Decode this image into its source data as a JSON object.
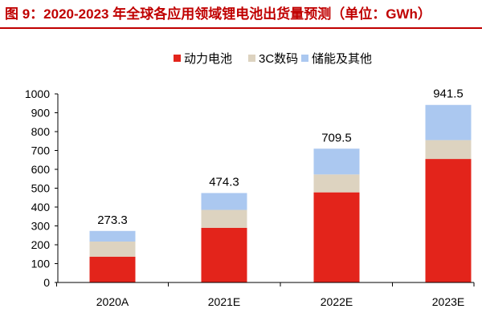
{
  "title": "图 9：2020-2023 年全球各应用领域锂电池出货量预测（单位：GWh）",
  "colors": {
    "title": "#c00000",
    "power": "#e3241b",
    "consumer": "#ddd3c0",
    "storage": "#abc8f0"
  },
  "chart_data": {
    "type": "bar",
    "stacked": true,
    "categories": [
      "2020A",
      "2021E",
      "2022E",
      "2023E"
    ],
    "series": [
      {
        "name": "动力电池",
        "values": [
          137,
          290,
          478,
          655
        ]
      },
      {
        "name": "3C数码",
        "values": [
          80,
          95,
          95,
          100
        ]
      },
      {
        "name": "储能及其他",
        "values": [
          56.3,
          89.3,
          136.5,
          186.5
        ]
      }
    ],
    "totals": [
      "273.3",
      "474.3",
      "709.5",
      "941.5"
    ],
    "ylim": [
      0,
      1000
    ],
    "yticks": [
      "0",
      "100",
      "200",
      "300",
      "400",
      "500",
      "600",
      "700",
      "800",
      "900",
      "1000"
    ],
    "grid": false,
    "legend": "top-right"
  }
}
